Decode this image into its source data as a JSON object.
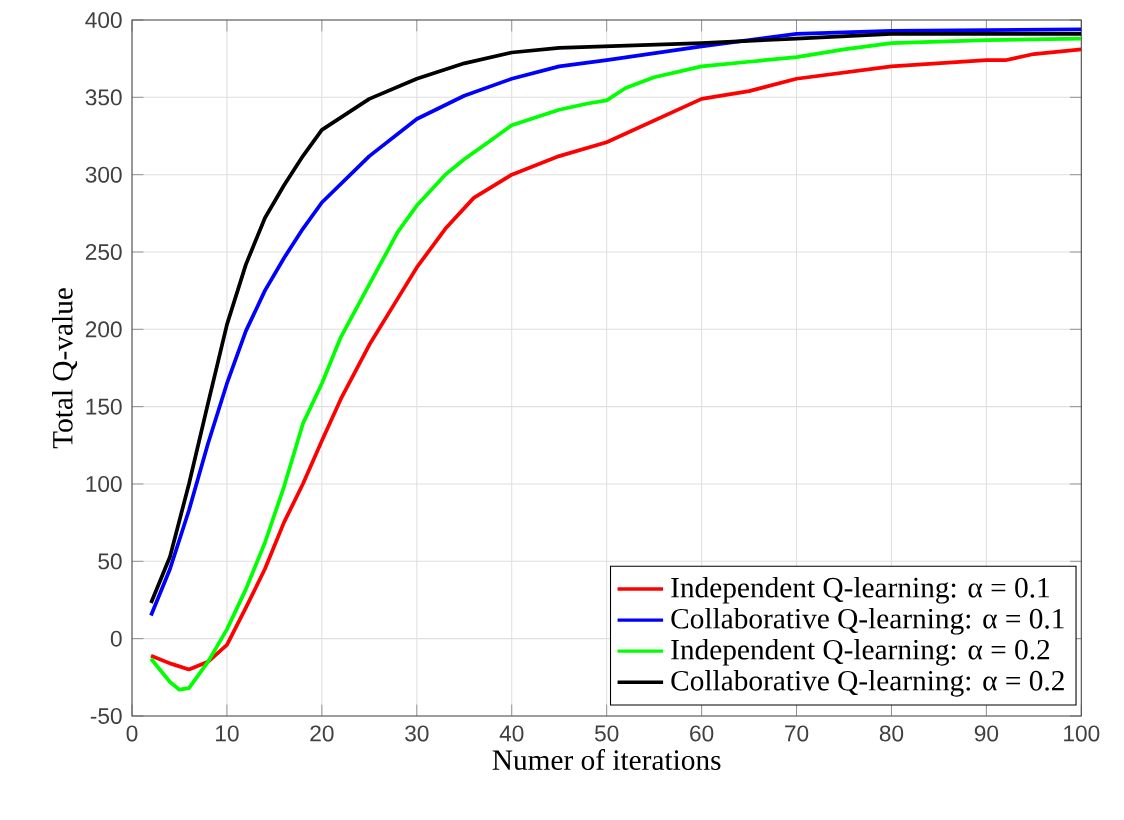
{
  "chart_data": {
    "type": "line",
    "xlabel": "Numer of iterations",
    "ylabel": "Total Q-value",
    "xlim": [
      0,
      100
    ],
    "ylim": [
      -50,
      400
    ],
    "xticks": [
      0,
      10,
      20,
      30,
      40,
      50,
      60,
      70,
      80,
      90,
      100
    ],
    "yticks": [
      -50,
      0,
      50,
      100,
      150,
      200,
      250,
      300,
      350,
      400
    ],
    "grid": true,
    "legend": "bottom right",
    "line_style": "solid",
    "marker": "none",
    "series": [
      {
        "name": "Independent Q-learning: α = 0.1",
        "color": "#ff0000",
        "x": [
          2,
          4,
          6,
          8,
          10,
          12,
          14,
          16,
          18,
          20,
          22,
          25,
          28,
          30,
          33,
          36,
          40,
          45,
          50,
          55,
          60,
          65,
          70,
          80,
          90,
          92,
          95,
          100
        ],
        "values": [
          -11,
          -16,
          -20,
          -15,
          -4,
          20,
          45,
          75,
          100,
          128,
          155,
          190,
          220,
          240,
          265,
          285,
          300,
          312,
          321,
          335,
          349,
          354,
          362,
          370,
          374,
          374,
          378,
          381
        ]
      },
      {
        "name": "Collaborative Q-learning: α = 0.1",
        "color": "#0000ff",
        "x": [
          2,
          4,
          6,
          8,
          10,
          12,
          14,
          16,
          18,
          20,
          25,
          30,
          35,
          40,
          45,
          50,
          60,
          70,
          80,
          100
        ],
        "values": [
          15,
          45,
          83,
          126,
          165,
          199,
          225,
          246,
          265,
          282,
          312,
          336,
          351,
          362,
          370,
          374,
          383,
          391,
          393,
          394
        ]
      },
      {
        "name": "Independent Q-learning: α = 0.2",
        "color": "#00ff00",
        "x": [
          2,
          4,
          5,
          6,
          8,
          10,
          12,
          14,
          16,
          18,
          20,
          22,
          25,
          28,
          30,
          33,
          35,
          38,
          40,
          45,
          48,
          50,
          52,
          55,
          60,
          65,
          70,
          75,
          80,
          90,
          100
        ],
        "values": [
          -13,
          -28,
          -33,
          -32,
          -15,
          6,
          32,
          62,
          98,
          139,
          165,
          195,
          229,
          263,
          280,
          300,
          310,
          323,
          332,
          342,
          346,
          348,
          356,
          363,
          370,
          373,
          376,
          381,
          385,
          387,
          388
        ]
      },
      {
        "name": "Collaborative Q-learning: α = 0.2",
        "color": "#000000",
        "x": [
          2,
          4,
          6,
          8,
          10,
          12,
          14,
          16,
          18,
          20,
          25,
          30,
          35,
          40,
          45,
          50,
          60,
          70,
          80,
          100
        ],
        "values": [
          23,
          53,
          100,
          152,
          203,
          242,
          272,
          293,
          312,
          329,
          349,
          362,
          372,
          379,
          382,
          383,
          385,
          388,
          391,
          391
        ]
      }
    ]
  }
}
